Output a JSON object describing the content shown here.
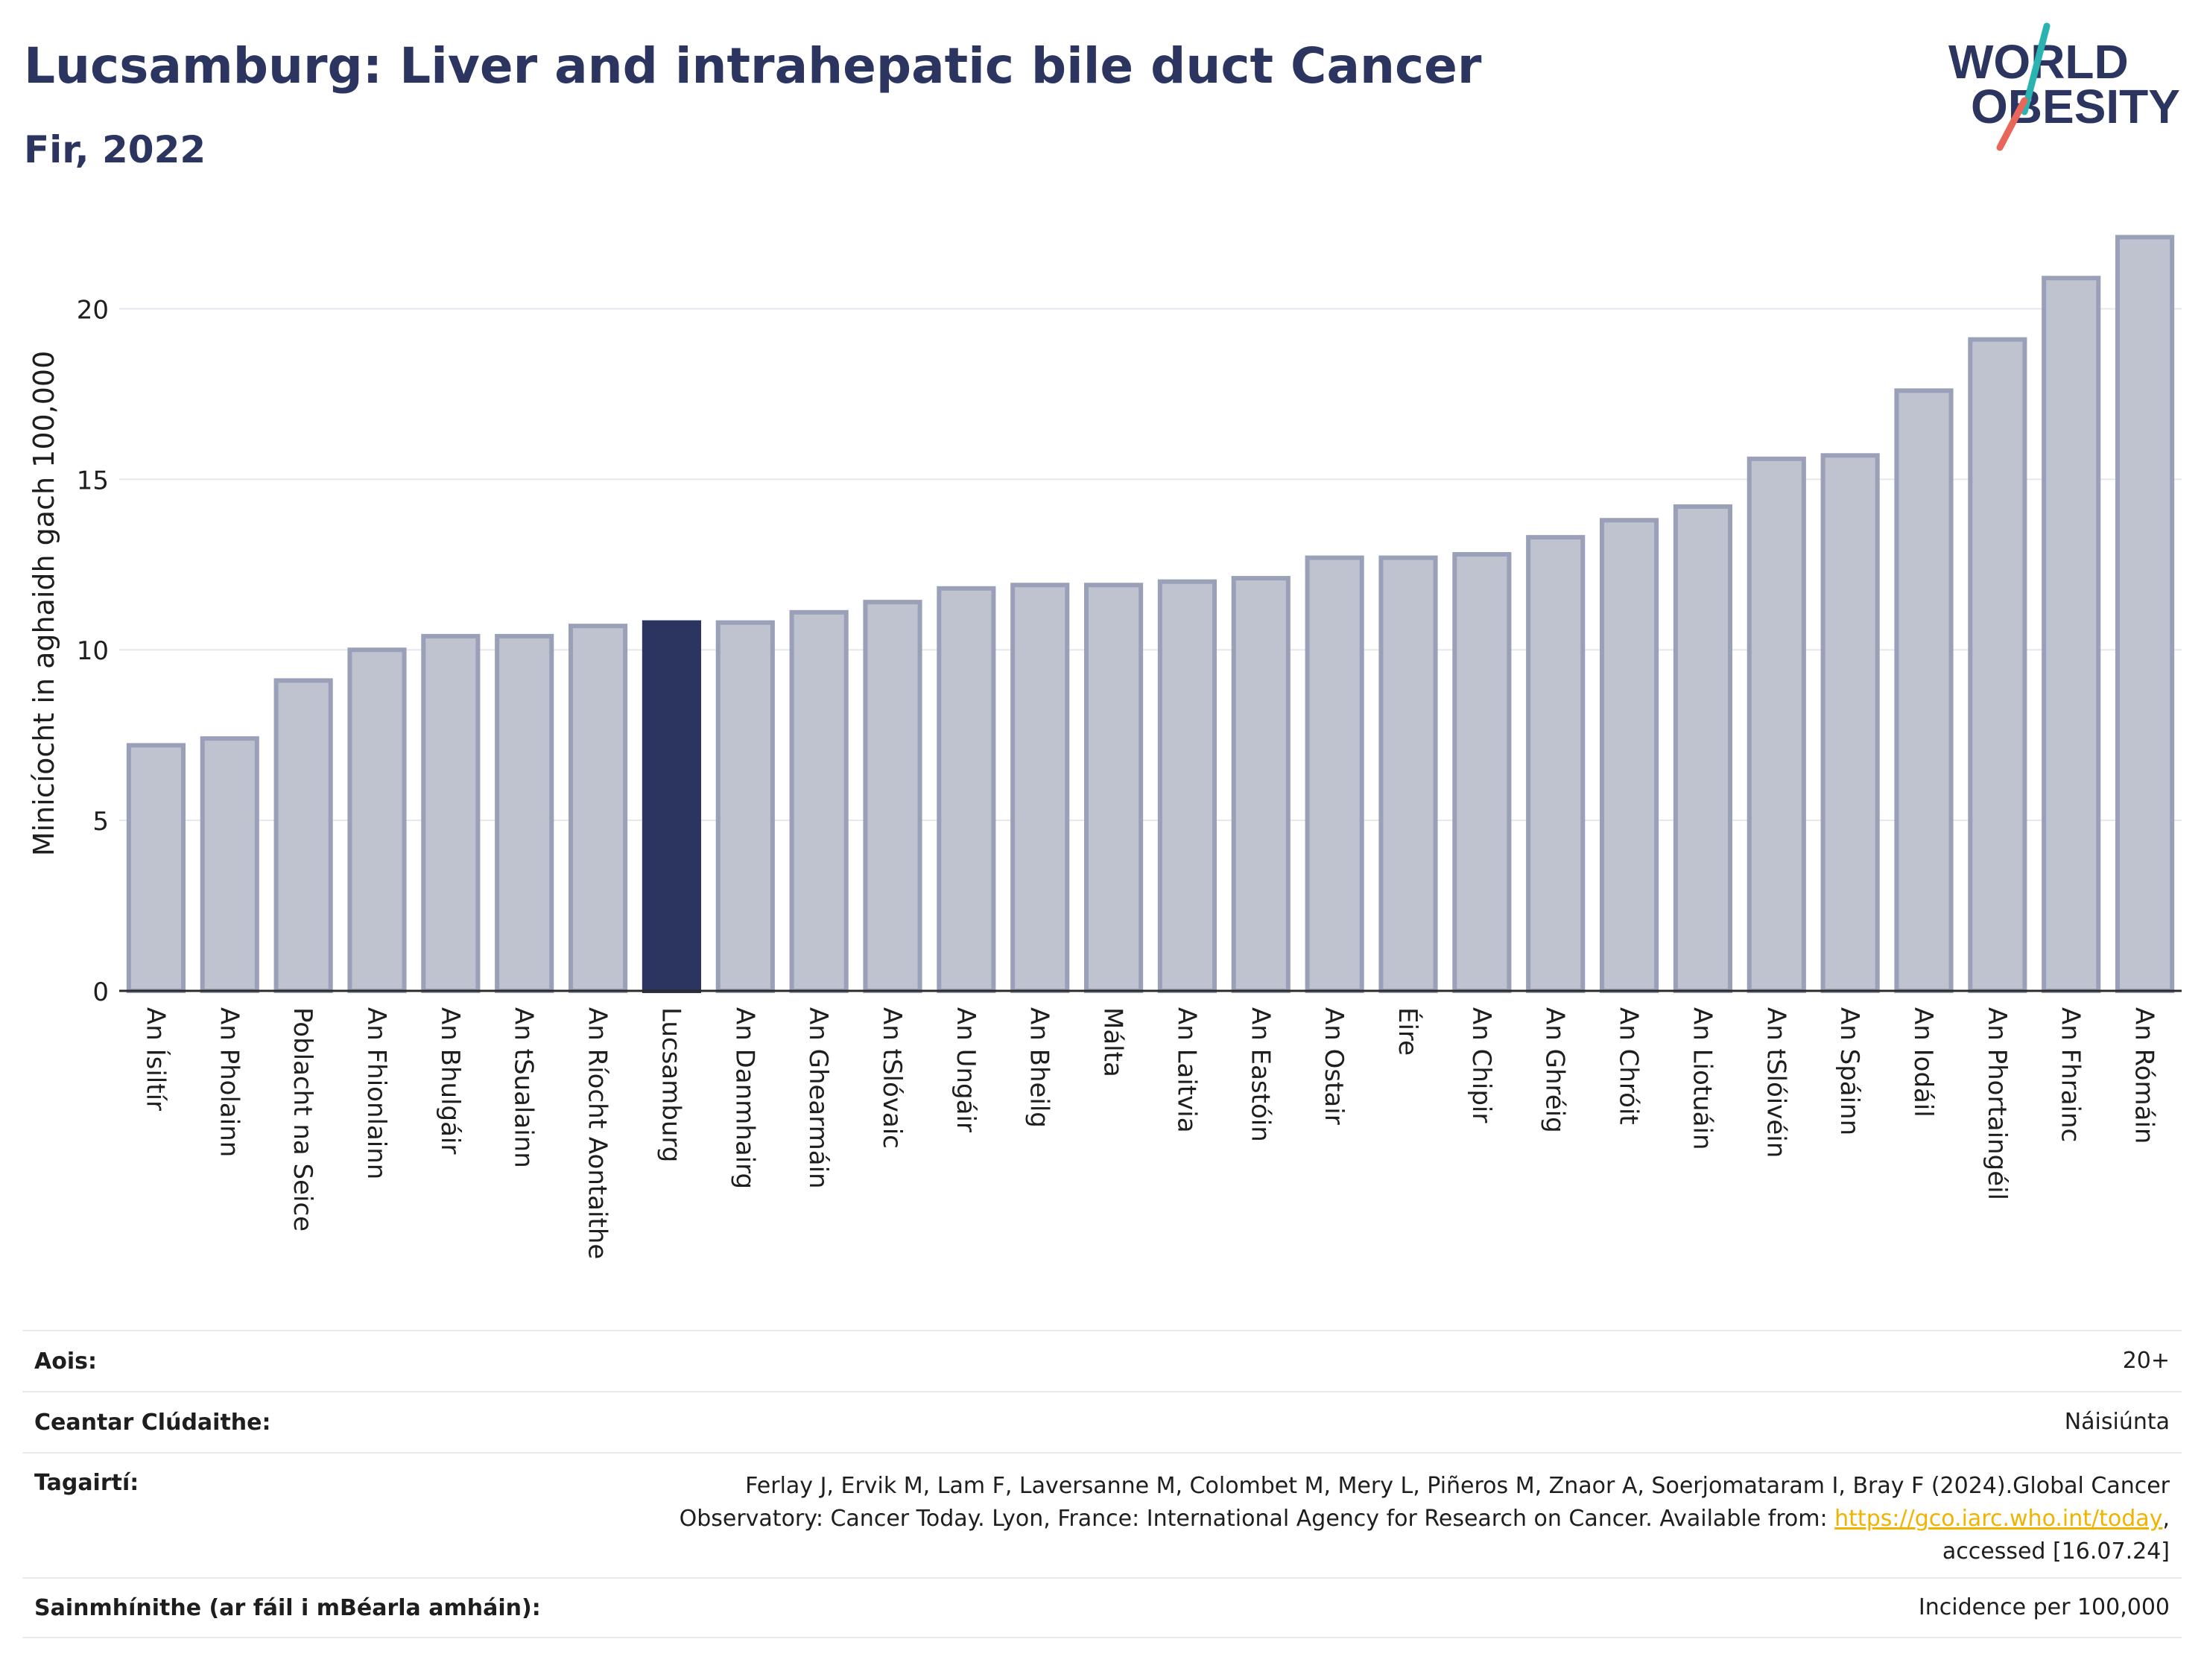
{
  "header": {
    "title": "Lucsamburg: Liver and intrahepatic bile duct Cancer",
    "subtitle": "Fir, 2022"
  },
  "logo": {
    "line1": "WORLD",
    "line2": "OBESITY",
    "text": "WORLD OBESITY"
  },
  "colors": {
    "highlight": "#2b3560",
    "bar": "#bfc2cf",
    "bar_edge": "#9aa0b8",
    "title": "#2b3560",
    "link": "#f0b400",
    "logo_teal": "#2ab3b1",
    "logo_red": "#e8675a"
  },
  "chart_data": {
    "type": "bar",
    "ylabel": "Minicíocht in aghaidh gach 100,000",
    "ylim": [
      0,
      22.5
    ],
    "yticks": [
      0,
      5,
      10,
      15,
      20
    ],
    "grid": true,
    "highlight": "Lucsamburg",
    "categories": [
      "An Ísiltír",
      "An Pholainn",
      "Poblacht na Seice",
      "An Fhionlainn",
      "An Bhulgáir",
      "An tSualainn",
      "An Ríocht Aontaithe",
      "Lucsamburg",
      "An Danmhairg",
      "An Ghearmáin",
      "An tSlóvaic",
      "An Ungáir",
      "An Bheilg",
      "Málta",
      "An Laitvia",
      "An Eastóin",
      "An Ostair",
      "Éire",
      "An Chipir",
      "An Ghréig",
      "An Chróit",
      "An Liotuáin",
      "An tSlóivéin",
      "An Spáinn",
      "An Iodáil",
      "An Phortaingéil",
      "An Fhrainc",
      "An Rómáin"
    ],
    "values": [
      7.2,
      7.4,
      9.1,
      10.0,
      10.4,
      10.4,
      10.7,
      10.8,
      10.8,
      11.1,
      11.4,
      11.8,
      11.9,
      11.9,
      12.0,
      12.1,
      12.7,
      12.7,
      12.8,
      13.3,
      13.8,
      14.2,
      15.6,
      15.7,
      17.6,
      19.1,
      20.9,
      22.1
    ]
  },
  "info": {
    "age_label": "Aois:",
    "age_value": "20+",
    "coverage_label": "Ceantar Clúdaithe:",
    "coverage_value": "Náisiúnta",
    "refs_label": "Tagairtí:",
    "refs_text1": "Ferlay J, Ervik M, Lam F, Laversanne M, Colombet M, Mery L, Piñeros M, Znaor A, Soerjomataram I, Bray F (2024).Global Cancer",
    "refs_text2": "Observatory: Cancer Today. Lyon, France: International Agency for Research on Cancer. Available from: ",
    "refs_link": "https://gco.iarc.who.int/today",
    "refs_text3": ",",
    "refs_text4": "accessed [16.07.24]",
    "defs_label": "Sainmhínithe (ar fáil i mBéarla amháin):",
    "defs_value": "Incidence per 100,000"
  }
}
